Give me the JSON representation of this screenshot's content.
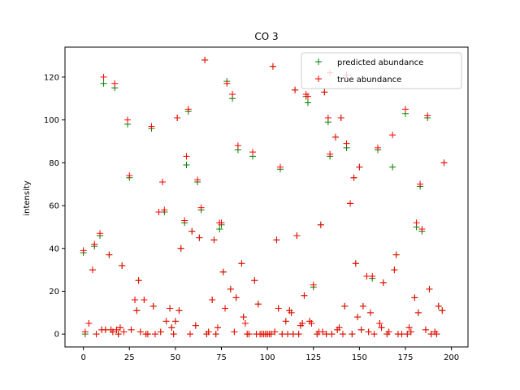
{
  "chart_data": {
    "type": "scatter",
    "title": "CO 3",
    "xlabel": "",
    "ylabel": "intensity",
    "xlim": [
      -10,
      209
    ],
    "ylim": [
      -6,
      134
    ],
    "xticks": [
      0,
      25,
      50,
      75,
      100,
      125,
      150,
      175,
      200
    ],
    "yticks": [
      0,
      20,
      40,
      60,
      80,
      100,
      120
    ],
    "grid": false,
    "legend_position": "top-right",
    "marker": "+",
    "series": [
      {
        "name": "predicted abundance",
        "color": "#008000",
        "points": [
          [
            0,
            38
          ],
          [
            1,
            0
          ],
          [
            3,
            5
          ],
          [
            5,
            30
          ],
          [
            6,
            41
          ],
          [
            7,
            0
          ],
          [
            9,
            46
          ],
          [
            10,
            2
          ],
          [
            11,
            117
          ],
          [
            12,
            2
          ],
          [
            14,
            37
          ],
          [
            15,
            2
          ],
          [
            16,
            1
          ],
          [
            17,
            115
          ],
          [
            18,
            2
          ],
          [
            19,
            0
          ],
          [
            20,
            3
          ],
          [
            21,
            32
          ],
          [
            22,
            1
          ],
          [
            24,
            98
          ],
          [
            25,
            73
          ],
          [
            26,
            2
          ],
          [
            28,
            16
          ],
          [
            29,
            11
          ],
          [
            30,
            25
          ],
          [
            31,
            1
          ],
          [
            33,
            16
          ],
          [
            34,
            0
          ],
          [
            35,
            0
          ],
          [
            37,
            96
          ],
          [
            38,
            13
          ],
          [
            39,
            0
          ],
          [
            41,
            57
          ],
          [
            42,
            1
          ],
          [
            43,
            71
          ],
          [
            44,
            57
          ],
          [
            45,
            6
          ],
          [
            47,
            12
          ],
          [
            48,
            3
          ],
          [
            49,
            0
          ],
          [
            50,
            6
          ],
          [
            51,
            101
          ],
          [
            52,
            11
          ],
          [
            53,
            40
          ],
          [
            55,
            52
          ],
          [
            56,
            79
          ],
          [
            57,
            104
          ],
          [
            58,
            0
          ],
          [
            59,
            48
          ],
          [
            61,
            4
          ],
          [
            62,
            71
          ],
          [
            63,
            45
          ],
          [
            64,
            58
          ],
          [
            66,
            128
          ],
          [
            67,
            0
          ],
          [
            68,
            1
          ],
          [
            70,
            16
          ],
          [
            71,
            44
          ],
          [
            72,
            0
          ],
          [
            73,
            3
          ],
          [
            74,
            49
          ],
          [
            75,
            51
          ],
          [
            76,
            29
          ],
          [
            77,
            12
          ],
          [
            78,
            118
          ],
          [
            80,
            21
          ],
          [
            81,
            110
          ],
          [
            82,
            1
          ],
          [
            83,
            17
          ],
          [
            84,
            86
          ],
          [
            86,
            33
          ],
          [
            87,
            8
          ],
          [
            88,
            5
          ],
          [
            89,
            0
          ],
          [
            90,
            0
          ],
          [
            92,
            83
          ],
          [
            93,
            25
          ],
          [
            94,
            0
          ],
          [
            95,
            14
          ],
          [
            96,
            0
          ],
          [
            97,
            0
          ],
          [
            98,
            0
          ],
          [
            99,
            0
          ],
          [
            100,
            0
          ],
          [
            101,
            0
          ],
          [
            102,
            0
          ],
          [
            103,
            125
          ],
          [
            104,
            1
          ],
          [
            105,
            44
          ],
          [
            106,
            12
          ],
          [
            107,
            77
          ],
          [
            108,
            0
          ],
          [
            110,
            6
          ],
          [
            111,
            0
          ],
          [
            112,
            11
          ],
          [
            113,
            10
          ],
          [
            114,
            0
          ],
          [
            115,
            114
          ],
          [
            116,
            46
          ],
          [
            117,
            0
          ],
          [
            118,
            4
          ],
          [
            119,
            5
          ],
          [
            120,
            18
          ],
          [
            121,
            111
          ],
          [
            122,
            108
          ],
          [
            123,
            6
          ],
          [
            124,
            5
          ],
          [
            125,
            22
          ],
          [
            127,
            0
          ],
          [
            128,
            1
          ],
          [
            129,
            51
          ],
          [
            130,
            1
          ],
          [
            131,
            113
          ],
          [
            132,
            0
          ],
          [
            133,
            99
          ],
          [
            134,
            83
          ],
          [
            135,
            0
          ],
          [
            137,
            92
          ],
          [
            138,
            2
          ],
          [
            139,
            3
          ],
          [
            140,
            101
          ],
          [
            141,
            0
          ],
          [
            142,
            13
          ],
          [
            143,
            87
          ],
          [
            145,
            61
          ],
          [
            146,
            0
          ],
          [
            147,
            73
          ],
          [
            148,
            33
          ],
          [
            149,
            8
          ],
          [
            150,
            78
          ],
          [
            151,
            2
          ],
          [
            152,
            13
          ],
          [
            154,
            27
          ],
          [
            155,
            1
          ],
          [
            156,
            10
          ],
          [
            157,
            26
          ],
          [
            158,
            0
          ],
          [
            160,
            86
          ],
          [
            161,
            5
          ],
          [
            162,
            3
          ],
          [
            163,
            24
          ],
          [
            165,
            0
          ],
          [
            166,
            1
          ],
          [
            168,
            78
          ],
          [
            169,
            30
          ],
          [
            170,
            37
          ],
          [
            171,
            0
          ],
          [
            173,
            0
          ],
          [
            175,
            103
          ],
          [
            176,
            0
          ],
          [
            177,
            3
          ],
          [
            178,
            1
          ],
          [
            180,
            17
          ],
          [
            181,
            50
          ],
          [
            182,
            10
          ],
          [
            183,
            69
          ],
          [
            184,
            48
          ],
          [
            186,
            2
          ],
          [
            187,
            101
          ],
          [
            188,
            21
          ],
          [
            189,
            0
          ],
          [
            191,
            1
          ],
          [
            192,
            0
          ],
          [
            193,
            13
          ],
          [
            195,
            11
          ],
          [
            196,
            80
          ]
        ]
      },
      {
        "name": "true abundance",
        "color": "#ff0000",
        "points": [
          [
            0,
            39
          ],
          [
            1,
            1
          ],
          [
            3,
            5
          ],
          [
            5,
            30
          ],
          [
            6,
            42
          ],
          [
            7,
            0
          ],
          [
            9,
            47
          ],
          [
            10,
            2
          ],
          [
            11,
            120
          ],
          [
            12,
            2
          ],
          [
            14,
            37
          ],
          [
            15,
            2
          ],
          [
            16,
            1
          ],
          [
            17,
            117
          ],
          [
            18,
            2
          ],
          [
            19,
            0
          ],
          [
            20,
            3
          ],
          [
            21,
            32
          ],
          [
            22,
            1
          ],
          [
            24,
            100
          ],
          [
            25,
            74
          ],
          [
            26,
            2
          ],
          [
            28,
            16
          ],
          [
            29,
            11
          ],
          [
            30,
            25
          ],
          [
            31,
            1
          ],
          [
            33,
            16
          ],
          [
            34,
            0
          ],
          [
            35,
            0
          ],
          [
            37,
            97
          ],
          [
            38,
            13
          ],
          [
            39,
            0
          ],
          [
            41,
            57
          ],
          [
            42,
            1
          ],
          [
            43,
            71
          ],
          [
            44,
            58
          ],
          [
            45,
            6
          ],
          [
            47,
            12
          ],
          [
            48,
            3
          ],
          [
            49,
            0
          ],
          [
            50,
            6
          ],
          [
            51,
            101
          ],
          [
            52,
            11
          ],
          [
            53,
            40
          ],
          [
            55,
            53
          ],
          [
            56,
            83
          ],
          [
            57,
            105
          ],
          [
            58,
            0
          ],
          [
            59,
            48
          ],
          [
            61,
            4
          ],
          [
            62,
            72
          ],
          [
            63,
            45
          ],
          [
            64,
            59
          ],
          [
            66,
            128
          ],
          [
            67,
            0
          ],
          [
            68,
            1
          ],
          [
            70,
            16
          ],
          [
            71,
            44
          ],
          [
            72,
            0
          ],
          [
            73,
            3
          ],
          [
            74,
            52
          ],
          [
            75,
            52
          ],
          [
            76,
            29
          ],
          [
            77,
            12
          ],
          [
            78,
            117
          ],
          [
            80,
            21
          ],
          [
            81,
            112
          ],
          [
            82,
            1
          ],
          [
            83,
            17
          ],
          [
            84,
            88
          ],
          [
            86,
            33
          ],
          [
            87,
            8
          ],
          [
            88,
            5
          ],
          [
            89,
            0
          ],
          [
            90,
            0
          ],
          [
            92,
            85
          ],
          [
            93,
            25
          ],
          [
            94,
            0
          ],
          [
            95,
            14
          ],
          [
            96,
            0
          ],
          [
            97,
            0
          ],
          [
            98,
            0
          ],
          [
            99,
            0
          ],
          [
            100,
            0
          ],
          [
            101,
            0
          ],
          [
            102,
            0
          ],
          [
            103,
            125
          ],
          [
            104,
            1
          ],
          [
            105,
            44
          ],
          [
            106,
            12
          ],
          [
            107,
            78
          ],
          [
            108,
            0
          ],
          [
            110,
            6
          ],
          [
            111,
            0
          ],
          [
            112,
            11
          ],
          [
            113,
            10
          ],
          [
            114,
            0
          ],
          [
            115,
            114
          ],
          [
            116,
            46
          ],
          [
            117,
            0
          ],
          [
            118,
            4
          ],
          [
            119,
            5
          ],
          [
            120,
            18
          ],
          [
            121,
            112
          ],
          [
            122,
            111
          ],
          [
            123,
            6
          ],
          [
            124,
            5
          ],
          [
            125,
            23
          ],
          [
            127,
            0
          ],
          [
            128,
            1
          ],
          [
            129,
            51
          ],
          [
            130,
            1
          ],
          [
            131,
            113
          ],
          [
            132,
            0
          ],
          [
            133,
            101
          ],
          [
            134,
            84
          ],
          [
            135,
            0
          ],
          [
            137,
            92
          ],
          [
            138,
            2
          ],
          [
            139,
            3
          ],
          [
            140,
            101
          ],
          [
            141,
            0
          ],
          [
            142,
            13
          ],
          [
            143,
            89
          ],
          [
            145,
            61
          ],
          [
            146,
            0
          ],
          [
            147,
            73
          ],
          [
            148,
            33
          ],
          [
            149,
            8
          ],
          [
            150,
            78
          ],
          [
            151,
            2
          ],
          [
            152,
            13
          ],
          [
            154,
            27
          ],
          [
            155,
            1
          ],
          [
            156,
            10
          ],
          [
            157,
            27
          ],
          [
            158,
            0
          ],
          [
            160,
            87
          ],
          [
            161,
            5
          ],
          [
            162,
            3
          ],
          [
            163,
            24
          ],
          [
            165,
            0
          ],
          [
            166,
            1
          ],
          [
            168,
            93
          ],
          [
            169,
            30
          ],
          [
            170,
            37
          ],
          [
            171,
            0
          ],
          [
            173,
            0
          ],
          [
            175,
            105
          ],
          [
            176,
            0
          ],
          [
            177,
            3
          ],
          [
            178,
            1
          ],
          [
            180,
            17
          ],
          [
            181,
            52
          ],
          [
            182,
            10
          ],
          [
            183,
            70
          ],
          [
            184,
            49
          ],
          [
            186,
            2
          ],
          [
            187,
            102
          ],
          [
            188,
            21
          ],
          [
            189,
            0
          ],
          [
            191,
            1
          ],
          [
            192,
            0
          ],
          [
            193,
            13
          ],
          [
            195,
            11
          ],
          [
            196,
            80
          ],
          [
            134,
            122
          ],
          [
            143,
            121
          ]
        ]
      }
    ]
  }
}
